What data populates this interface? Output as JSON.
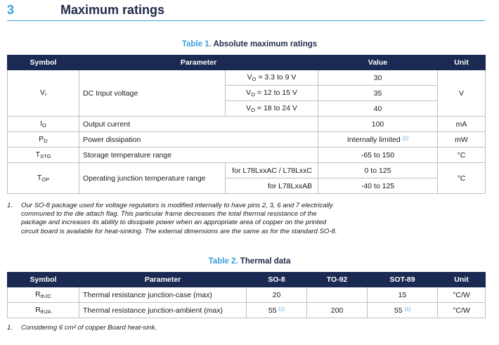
{
  "section": {
    "number": "3",
    "title": "Maximum ratings"
  },
  "table1": {
    "caption_num": "Table 1.",
    "caption_text": "Absolute maximum ratings",
    "headers": {
      "symbol": "Symbol",
      "parameter": "Parameter",
      "value": "Value",
      "unit": "Unit"
    },
    "vi": {
      "symbol_main": "V",
      "symbol_sub": "I",
      "parameter": "DC Input voltage",
      "unit": "V",
      "conditions": [
        {
          "pre": "V",
          "sub": "O",
          "post": " = 3.3 to 9 V",
          "value": "30"
        },
        {
          "pre": "V",
          "sub": "O",
          "post": " = 12 to 15 V",
          "value": "35"
        },
        {
          "pre": "V",
          "sub": "O",
          "post": " = 18 to 24 V",
          "value": "40"
        }
      ]
    },
    "io": {
      "symbol_main": "I",
      "symbol_sub": "O",
      "parameter": "Output current",
      "value": "100",
      "unit": "mA"
    },
    "pd": {
      "symbol_main": "P",
      "symbol_sub": "D",
      "parameter": "Power dissipation",
      "value": "Internally limited",
      "footnote": "(1)",
      "unit": "mW"
    },
    "tstg": {
      "symbol_main": "T",
      "symbol_sub": "STG",
      "parameter": "Storage temperature range",
      "value": "-65 to 150",
      "unit": "°C"
    },
    "top": {
      "symbol_main": "T",
      "symbol_sub": "OP",
      "parameter": "Operating junction temperature range",
      "unit": "°C",
      "conditions": [
        {
          "label": "for L78LxxAC / L78LxxC",
          "value": "0 to 125"
        },
        {
          "label": "for L78LxxAB",
          "value": "-40 to 125"
        }
      ]
    },
    "note": {
      "num": "1.",
      "lines": [
        "Our SO-8 package used for voltage regulators is modified internally to have pins 2, 3, 6 and 7 electrically",
        "communed to the die attach flag. This particular frame decreases the total thermal resistance of the",
        "package and increases its ability to dissipate power when an appropriate area of copper on the printed",
        "circuit board is available for heat-sinking. The external dimensions are the same as for the standard SO-8."
      ]
    }
  },
  "table2": {
    "caption_num": "Table 2.",
    "caption_text": "Thermal data",
    "headers": {
      "symbol": "Symbol",
      "parameter": "Parameter",
      "so8": "SO-8",
      "to92": "TO-92",
      "sot89": "SOT-89",
      "unit": "Unit"
    },
    "rows": [
      {
        "symbol_main": "R",
        "symbol_sub": "thJC",
        "parameter": "Thermal resistance junction-case (max)",
        "so8": "20",
        "so8_fn": "",
        "to92": "",
        "sot89": "15",
        "sot89_fn": "",
        "unit": "°C/W"
      },
      {
        "symbol_main": "R",
        "symbol_sub": "thJA",
        "parameter": "Thermal resistance junction-ambient (max)",
        "so8": "55",
        "so8_fn": "(1)",
        "to92": "200",
        "sot89": "55",
        "sot89_fn": "(1)",
        "unit": "°C/W"
      }
    ],
    "note": {
      "num": "1.",
      "text": "Considering 6 cm² of copper Board heat-sink."
    }
  }
}
